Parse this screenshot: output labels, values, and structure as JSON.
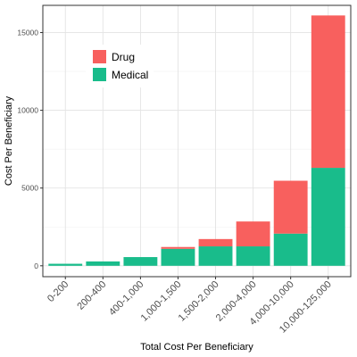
{
  "chart_data": {
    "type": "bar",
    "stacked": true,
    "title": "",
    "xlabel": "Total Cost Per Beneficiary",
    "ylabel": "Cost Per Beneficiary",
    "categories": [
      "0-200",
      "200-400",
      "400-1,000",
      "1,000-1,500",
      "1,500-2,000",
      "2,000-4,000",
      "4,000-10,000",
      "10,000-125,000"
    ],
    "series": [
      {
        "name": "Medical",
        "color": "#19BC8B",
        "values": [
          130,
          280,
          560,
          1090,
          1250,
          1250,
          2070,
          6300
        ]
      },
      {
        "name": "Drug",
        "color": "#F8605E",
        "values": [
          0,
          0,
          0,
          120,
          470,
          1600,
          3400,
          9800
        ]
      }
    ],
    "ylim": [
      -700,
      16750
    ],
    "yticks": [
      0,
      5000,
      10000,
      15000
    ],
    "ytick_labels": [
      "0",
      "5000",
      "10000",
      "15000"
    ],
    "legend": {
      "placement": "top-left",
      "items": [
        {
          "label": "Drug",
          "color": "#F8605E"
        },
        {
          "label": "Medical",
          "color": "#19BC8B"
        }
      ]
    },
    "grid": true
  }
}
